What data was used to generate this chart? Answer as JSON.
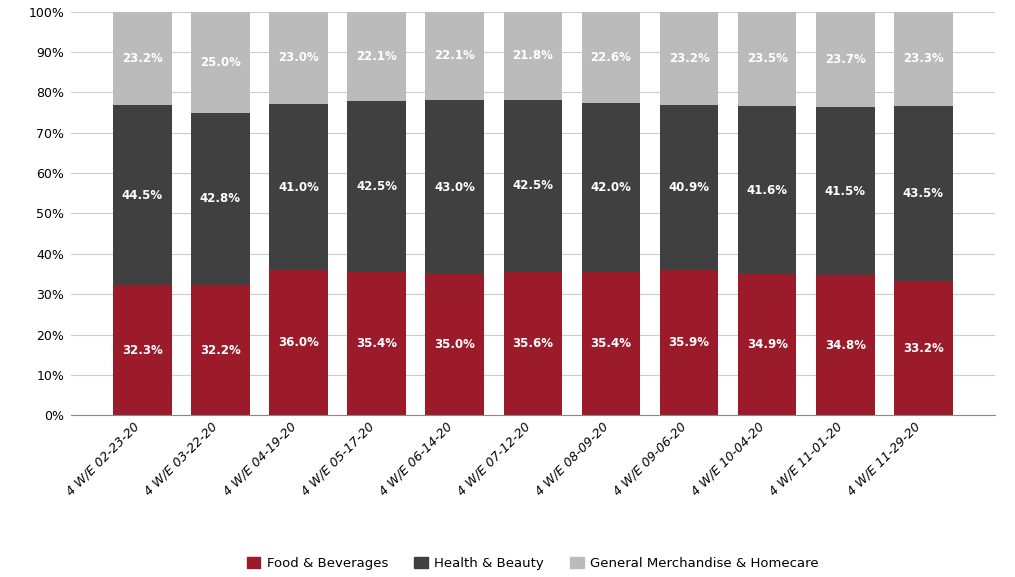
{
  "categories": [
    "4 W/E 02-23-20",
    "4 W/E 03-22-20",
    "4 W/E 04-19-20",
    "4 W/E 05-17-20",
    "4 W/E 06-14-20",
    "4 W/E 07-12-20",
    "4 W/E 08-09-20",
    "4 W/E 09-06-20",
    "4 W/E 10-04-20",
    "4 W/E 11-01-20",
    "4 W/E 11-29-20"
  ],
  "food_beverages": [
    32.3,
    32.2,
    36.0,
    35.4,
    35.0,
    35.6,
    35.4,
    35.9,
    34.9,
    34.8,
    33.2
  ],
  "health_beauty": [
    44.5,
    42.8,
    41.0,
    42.5,
    43.0,
    42.5,
    42.0,
    40.9,
    41.6,
    41.5,
    43.5
  ],
  "general_merch": [
    23.2,
    25.0,
    23.0,
    22.1,
    22.1,
    21.8,
    22.6,
    23.2,
    23.5,
    23.7,
    23.3
  ],
  "color_food": "#9B1B2A",
  "color_health": "#404040",
  "color_general": "#BBBBBB",
  "bar_width": 0.75,
  "ylim": [
    0,
    100
  ],
  "yticks": [
    0,
    10,
    20,
    30,
    40,
    50,
    60,
    70,
    80,
    90,
    100
  ],
  "ytick_labels": [
    "0%",
    "10%",
    "20%",
    "30%",
    "40%",
    "50%",
    "60%",
    "70%",
    "80%",
    "90%",
    "100%"
  ],
  "legend_labels": [
    "Food & Beverages",
    "Health & Beauty",
    "General Merchandise & Homecare"
  ],
  "text_color_white": "#FFFFFF",
  "font_size_bar": 8.5,
  "font_size_legend": 9.5,
  "font_size_tick": 9,
  "fig_width": 10.15,
  "fig_height": 5.77
}
